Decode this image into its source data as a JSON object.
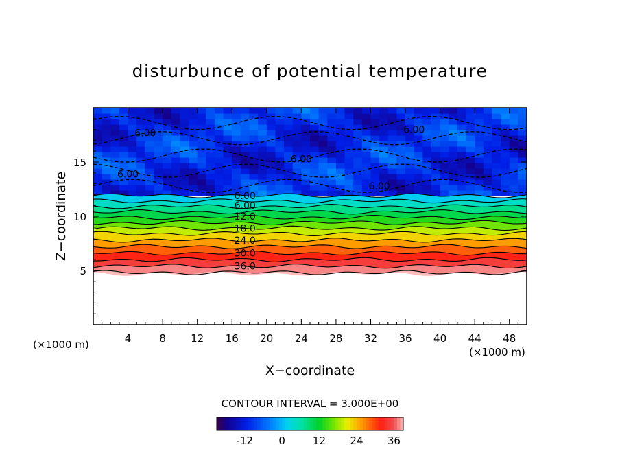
{
  "chart_data": {
    "type": "heatmap",
    "subtype": "filled contour",
    "title": "disturbunce of potential temperature",
    "xlabel": "X−coordinate",
    "ylabel": "Z−coordinate",
    "x_unit_left": "(×1000 m)",
    "x_unit_right": "(×1000 m)",
    "xlim": [
      0,
      50
    ],
    "ylim": [
      0,
      20
    ],
    "x_ticks": [
      "4",
      "8",
      "12",
      "16",
      "20",
      "24",
      "28",
      "32",
      "36",
      "40",
      "44",
      "48"
    ],
    "y_ticks": [
      "5",
      "10",
      "15"
    ],
    "contour_interval_text": "CONTOUR INTERVAL = 3.000E+00",
    "contour_interval": 3.0,
    "negative_contours": "dashed",
    "contour_labels": [
      {
        "text": "6.00",
        "x": 6,
        "z": 17.7
      },
      {
        "text": "6.00",
        "x": 4,
        "z": 13.9
      },
      {
        "text": "6.00",
        "x": 24,
        "z": 15.3
      },
      {
        "text": "6.00",
        "x": 37,
        "z": 18.0
      },
      {
        "text": "6.00",
        "x": 33,
        "z": 12.8
      },
      {
        "text": "0.00",
        "x": 17.5,
        "z": 11.9
      },
      {
        "text": "6.00",
        "x": 17.5,
        "z": 11.0
      },
      {
        "text": "12.0",
        "x": 17.5,
        "z": 10.0
      },
      {
        "text": "18.0",
        "x": 17.5,
        "z": 8.9
      },
      {
        "text": "24.0",
        "x": 17.5,
        "z": 7.8
      },
      {
        "text": "30.0",
        "x": 17.5,
        "z": 6.6
      },
      {
        "text": "36.0",
        "x": 17.5,
        "z": 5.4
      }
    ],
    "stable_layer_levels": [
      {
        "value": 0,
        "z": 11.9
      },
      {
        "value": 3,
        "z": 11.4
      },
      {
        "value": 6,
        "z": 10.9
      },
      {
        "value": 9,
        "z": 10.4
      },
      {
        "value": 12,
        "z": 9.9
      },
      {
        "value": 15,
        "z": 9.4
      },
      {
        "value": 18,
        "z": 8.9
      },
      {
        "value": 21,
        "z": 8.4
      },
      {
        "value": 24,
        "z": 7.8
      },
      {
        "value": 27,
        "z": 7.2
      },
      {
        "value": 30,
        "z": 6.6
      },
      {
        "value": 33,
        "z": 6.0
      },
      {
        "value": 36,
        "z": 5.4
      },
      {
        "value": 39,
        "z": 4.8
      }
    ],
    "mixed_layer_range": [
      -18,
      -3
    ],
    "empty_below_z": 4.7,
    "colorbar": {
      "min": -21,
      "max": 39,
      "ticks": [
        "-12",
        "0",
        "12",
        "24",
        "36"
      ],
      "tick_values": [
        -12,
        0,
        12,
        24,
        36
      ]
    }
  }
}
